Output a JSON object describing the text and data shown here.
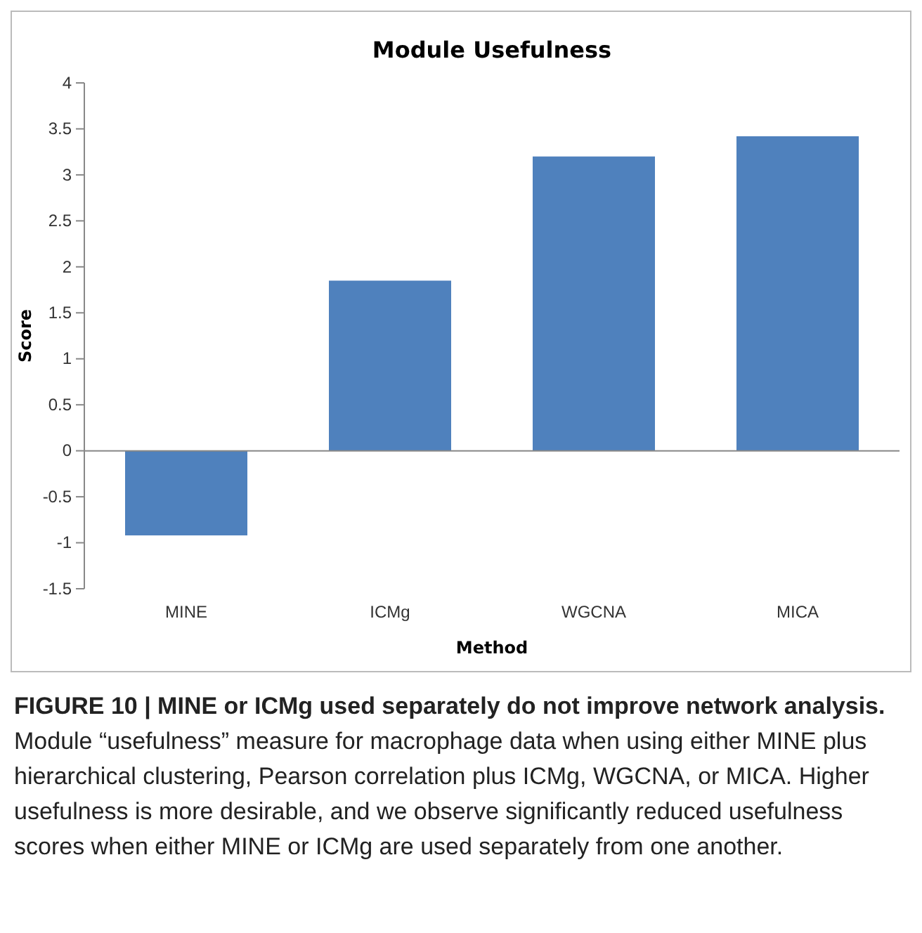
{
  "chart_data": {
    "type": "bar",
    "title": "Module Usefulness",
    "xlabel": "Method",
    "ylabel": "Score",
    "categories": [
      "MINE",
      "ICMg",
      "WGCNA",
      "MICA"
    ],
    "values": [
      -0.92,
      1.85,
      3.2,
      3.42
    ],
    "color": "#4f81bd",
    "ylim": [
      -1.5,
      4
    ],
    "yticks": [
      -1.5,
      -1,
      -0.5,
      0,
      0.5,
      1,
      1.5,
      2,
      2.5,
      3,
      3.5,
      4
    ],
    "annotations": [
      "FIGURE 10 | MINE or ICMg used separately do not improve network analysis.",
      "Module “usefulness” measure for macrophage data when using either MINE plus hierarchical clustering, Pearson correlation plus ICMg, WGCNA, or MICA. Higher usefulness is more desirable, and we observe significantly reduced usefulness scores when either MINE or ICMg are used separately from one another."
    ]
  }
}
